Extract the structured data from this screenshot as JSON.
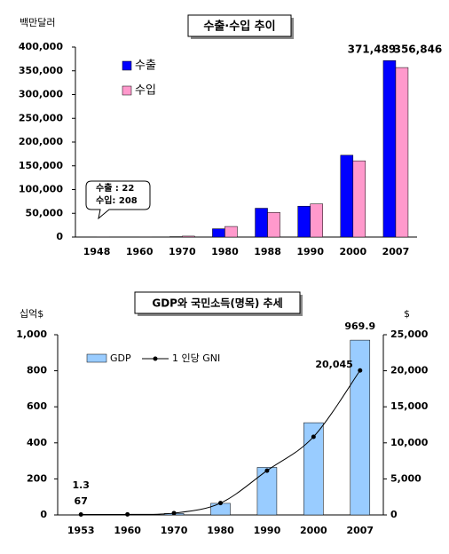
{
  "chart_data": [
    {
      "type": "bar",
      "title": "수출·수입 추이",
      "y_axis_label": "백만달러",
      "categories": [
        "1948",
        "1960",
        "1970",
        "1980",
        "1988",
        "1990",
        "2000",
        "2007"
      ],
      "series": [
        {
          "name": "수출",
          "color": "#0000ff",
          "values": [
            22,
            33,
            835,
            17505,
            60696,
            65016,
            172268,
            371489
          ],
          "value_labels": [
            null,
            null,
            null,
            null,
            null,
            null,
            null,
            "371,489"
          ]
        },
        {
          "name": "수입",
          "color": "#ff99cc",
          "values": [
            208,
            344,
            1984,
            22292,
            51811,
            69844,
            160481,
            356846
          ],
          "value_labels": [
            null,
            null,
            null,
            null,
            null,
            null,
            null,
            "356,846"
          ]
        }
      ],
      "annotations": [
        "수출 : 22",
        "수입: 208"
      ],
      "ylim": [
        0,
        400000
      ],
      "yticks": [
        0,
        {
          "value": 50000,
          "label": "50,000"
        },
        {
          "value": 100000,
          "label": "100,000"
        },
        {
          "value": 150000,
          "label": "150,000"
        },
        {
          "value": 200000,
          "label": "200,000"
        },
        {
          "value": 250000,
          "label": "250,000"
        },
        {
          "value": 300000,
          "label": "300,000"
        },
        {
          "value": 350000,
          "label": "350,000"
        },
        {
          "value": 400000,
          "label": "400,000"
        }
      ]
    },
    {
      "type": "bar",
      "title": "GDP와 국민소득(명목) 추세",
      "y_axis_label": "십억$",
      "y2_axis_label": "$",
      "categories": [
        "1953",
        "1960",
        "1970",
        "1980",
        "1990",
        "2000",
        "2007"
      ],
      "series": [
        {
          "name": "GDP",
          "color": "#99ccff",
          "values": [
            1.3,
            2.0,
            8.1,
            64.4,
            263.8,
            511.7,
            969.9
          ],
          "value_labels": [
            "1.3",
            null,
            null,
            null,
            null,
            null,
            "969.9"
          ]
        },
        {
          "name": "1 인당 GNI",
          "type": "line",
          "axis": "y2",
          "color": "#000000",
          "values": [
            67,
            79,
            254,
            1645,
            6147,
            10841,
            20045
          ],
          "value_labels": [
            "67",
            null,
            null,
            null,
            null,
            null,
            "20,045"
          ]
        }
      ],
      "ylim": [
        0,
        1000
      ],
      "yticks": [
        0,
        200,
        400,
        600,
        800,
        {
          "value": 1000,
          "label": "1,000"
        }
      ],
      "y2lim": [
        0,
        25000
      ],
      "y2ticks": [
        0,
        {
          "value": 5000,
          "label": "5,000"
        },
        {
          "value": 10000,
          "label": "10,000"
        },
        {
          "value": 15000,
          "label": "15,000"
        },
        {
          "value": 20000,
          "label": "20,000"
        },
        {
          "value": 25000,
          "label": "25,000"
        }
      ]
    }
  ]
}
